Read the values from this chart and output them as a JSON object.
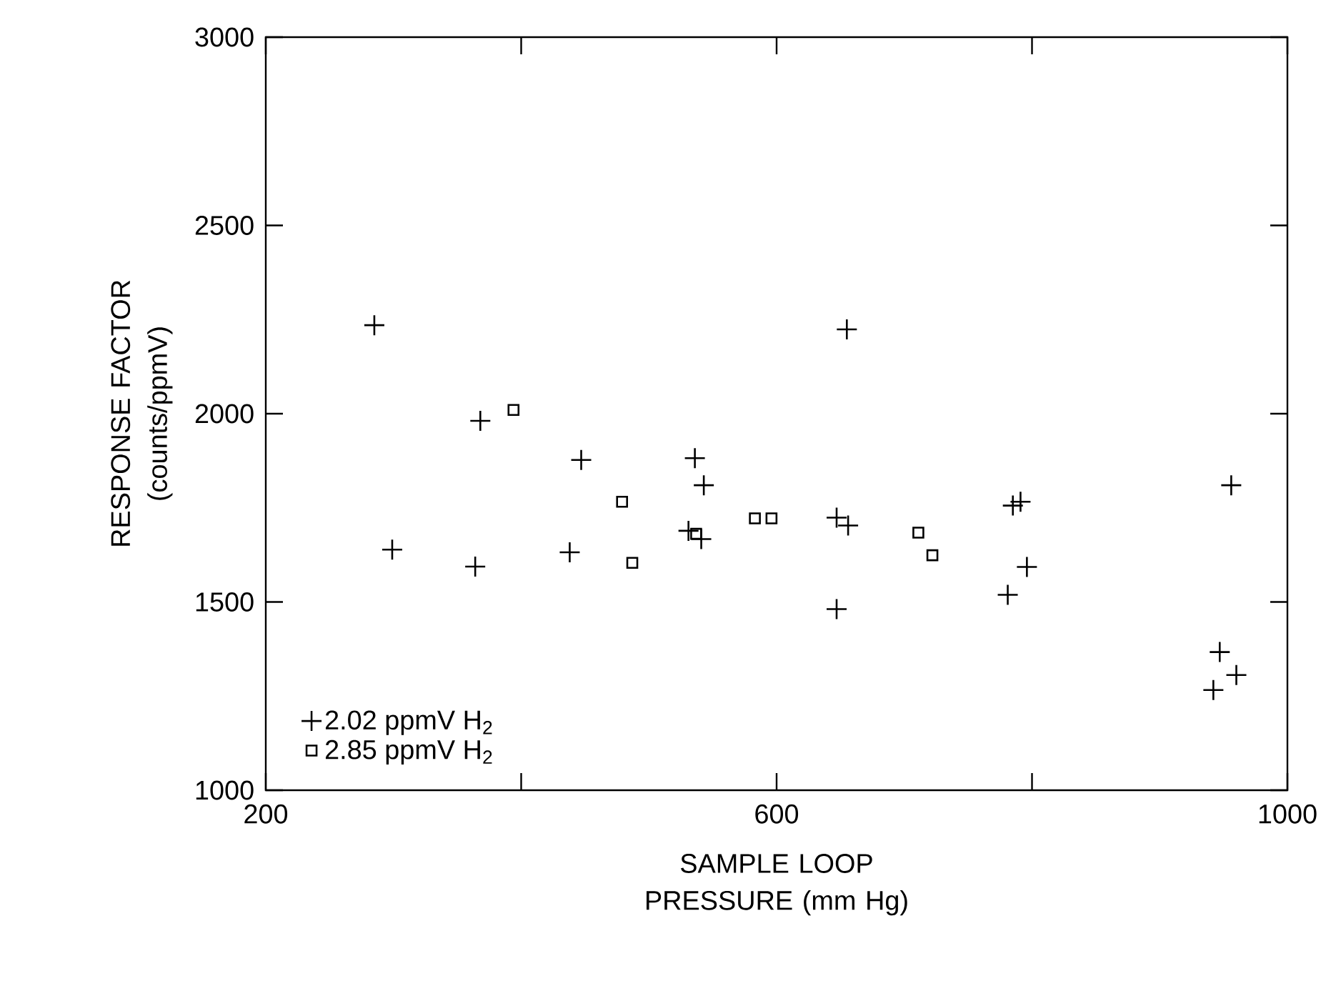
{
  "chart_data": {
    "type": "scatter",
    "xlabel": "SAMPLE LOOP PRESSURE (mm Hg)",
    "ylabel": "RESPONSE FACTOR (counts/ppmV)",
    "xlim": [
      200,
      1000
    ],
    "ylim": [
      1000,
      3000
    ],
    "xticks": [
      200,
      {
        "value": 400,
        "label": null
      },
      600,
      {
        "value": 800,
        "label": null
      },
      1000
    ],
    "yticks": [
      1000,
      1500,
      2000,
      2500,
      3000
    ],
    "grid": false,
    "legend": "bottom left",
    "series": [
      {
        "name": "2.02 ppmV H$_{2}$",
        "color": "#000000",
        "marker": "cross",
        "x": [
          285,
          299,
          364,
          368,
          447,
          438,
          536,
          543,
          531,
          541,
          655,
          647,
          656,
          647,
          785,
          791,
          796,
          781,
          956,
          947,
          960,
          942
        ],
        "values": [
          2235,
          1639,
          1594,
          1981,
          1877,
          1632,
          1882,
          1810,
          1689,
          1667,
          2224,
          1724,
          1703,
          1481,
          1756,
          1766,
          1593,
          1519,
          1810,
          1367,
          1306,
          1266
        ]
      },
      {
        "name": "2.85 ppmV H$_{2}$",
        "color": "#000000",
        "marker": "square",
        "x": [
          394,
          479,
          487,
          583,
          596,
          537,
          711,
          722
        ],
        "values": [
          2010,
          1766,
          1604,
          1722,
          1722,
          1681,
          1684,
          1624
        ]
      }
    ]
  }
}
